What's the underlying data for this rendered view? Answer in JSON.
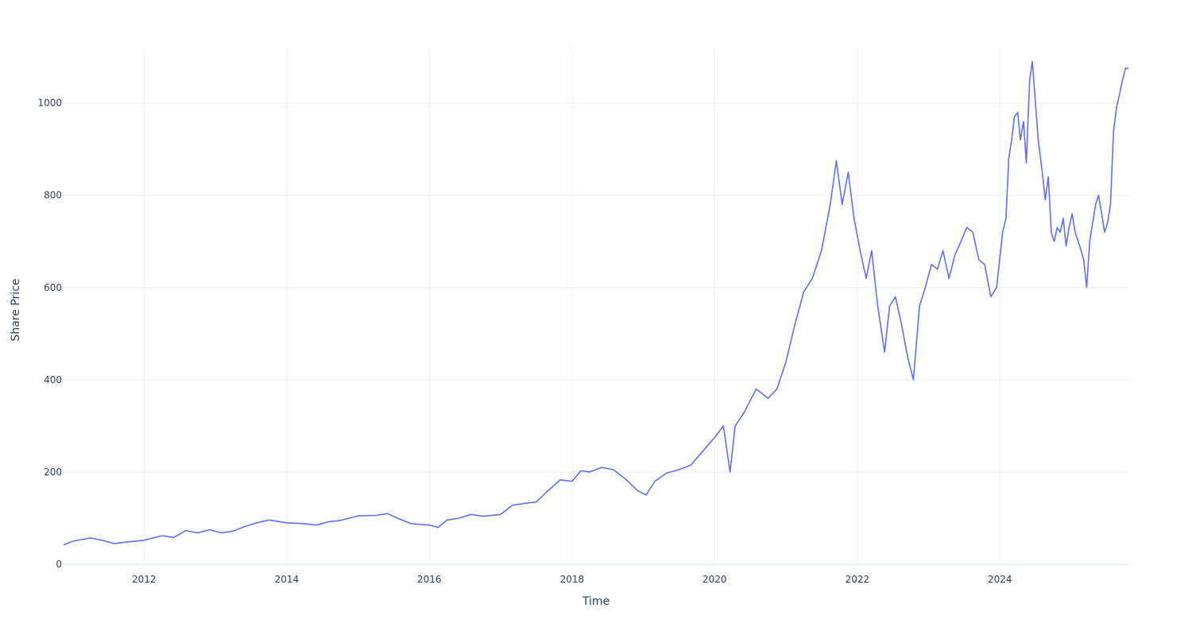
{
  "chart_data": {
    "type": "line",
    "title": "",
    "xlabel": "Time",
    "ylabel": "Share Price",
    "x_ticks": [
      "2012",
      "2014",
      "2016",
      "2018",
      "2020",
      "2022",
      "2024"
    ],
    "y_ticks": [
      "0",
      "200",
      "400",
      "600",
      "800",
      "1000"
    ],
    "xlim": [
      "2010-11-15",
      "2025-10-20"
    ],
    "ylim": [
      0,
      1120
    ],
    "grid": true,
    "legend": "none",
    "series": [
      {
        "color": "#636efa",
        "x": [
          "2010-11-15",
          "2011-01-01",
          "2011-04-01",
          "2011-06-01",
          "2011-08-01",
          "2011-10-01",
          "2012-01-01",
          "2012-04-01",
          "2012-06-01",
          "2012-08-01",
          "2012-10-01",
          "2012-12-01",
          "2013-02-01",
          "2013-04-01",
          "2013-06-01",
          "2013-08-01",
          "2013-10-01",
          "2014-01-01",
          "2014-04-01",
          "2014-06-01",
          "2014-08-01",
          "2014-10-01",
          "2015-01-01",
          "2015-04-01",
          "2015-06-01",
          "2015-08-01",
          "2015-10-01",
          "2016-01-01",
          "2016-02-15",
          "2016-04-01",
          "2016-06-01",
          "2016-08-01",
          "2016-10-01",
          "2017-01-01",
          "2017-03-01",
          "2017-05-01",
          "2017-07-01",
          "2017-09-01",
          "2017-11-01",
          "2018-01-01",
          "2018-02-15",
          "2018-04-01",
          "2018-06-01",
          "2018-08-01",
          "2018-10-01",
          "2018-12-01",
          "2019-01-15",
          "2019-03-01",
          "2019-05-01",
          "2019-07-01",
          "2019-09-01",
          "2019-11-01",
          "2020-01-01",
          "2020-02-15",
          "2020-03-20",
          "2020-04-15",
          "2020-06-01",
          "2020-08-01",
          "2020-10-01",
          "2020-11-15",
          "2021-01-01",
          "2021-02-15",
          "2021-04-01",
          "2021-05-15",
          "2021-07-01",
          "2021-08-15",
          "2021-09-15",
          "2021-10-15",
          "2021-11-15",
          "2021-12-15",
          "2022-01-15",
          "2022-02-15",
          "2022-03-15",
          "2022-04-15",
          "2022-05-20",
          "2022-06-15",
          "2022-07-15",
          "2022-08-15",
          "2022-09-15",
          "2022-10-15",
          "2022-11-15",
          "2022-12-15",
          "2023-01-15",
          "2023-02-15",
          "2023-03-15",
          "2023-04-15",
          "2023-05-15",
          "2023-06-15",
          "2023-07-15",
          "2023-08-15",
          "2023-09-15",
          "2023-10-15",
          "2023-11-15",
          "2023-12-15",
          "2024-01-15",
          "2024-02-01",
          "2024-02-15",
          "2024-03-01",
          "2024-03-15",
          "2024-04-01",
          "2024-04-15",
          "2024-05-01",
          "2024-05-15",
          "2024-06-01",
          "2024-06-15",
          "2024-07-01",
          "2024-07-15",
          "2024-08-05",
          "2024-08-20",
          "2024-09-05",
          "2024-09-20",
          "2024-10-05",
          "2024-10-20",
          "2024-11-05",
          "2024-11-20",
          "2024-12-05",
          "2024-12-20",
          "2025-01-05",
          "2025-01-20",
          "2025-02-05",
          "2025-02-20",
          "2025-03-05",
          "2025-03-20",
          "2025-04-05",
          "2025-04-20",
          "2025-05-05",
          "2025-05-20",
          "2025-06-05",
          "2025-06-20",
          "2025-07-05",
          "2025-07-20",
          "2025-08-05",
          "2025-08-20",
          "2025-09-05",
          "2025-09-20",
          "2025-10-05",
          "2025-10-20"
        ],
        "y": [
          42,
          50,
          57,
          52,
          45,
          48,
          52,
          62,
          58,
          73,
          68,
          75,
          68,
          72,
          82,
          90,
          96,
          90,
          88,
          85,
          92,
          95,
          105,
          106,
          110,
          98,
          88,
          85,
          80,
          96,
          100,
          108,
          104,
          108,
          128,
          132,
          135,
          160,
          183,
          180,
          203,
          200,
          210,
          205,
          185,
          160,
          150,
          180,
          198,
          205,
          215,
          245,
          275,
          300,
          200,
          300,
          330,
          380,
          360,
          380,
          440,
          520,
          590,
          620,
          680,
          780,
          875,
          780,
          850,
          750,
          680,
          620,
          680,
          560,
          460,
          560,
          580,
          520,
          450,
          400,
          560,
          600,
          650,
          640,
          680,
          620,
          670,
          700,
          730,
          720,
          660,
          650,
          580,
          600,
          720,
          750,
          880,
          920,
          970,
          980,
          920,
          960,
          870,
          1050,
          1090,
          1000,
          920,
          850,
          790,
          840,
          720,
          700,
          730,
          720,
          750,
          690,
          730,
          760,
          720,
          700,
          680,
          660,
          600,
          700,
          740,
          780,
          800,
          760,
          720,
          740,
          780,
          940,
          990,
          1020,
          1050,
          1075,
          1075
        ]
      }
    ]
  }
}
